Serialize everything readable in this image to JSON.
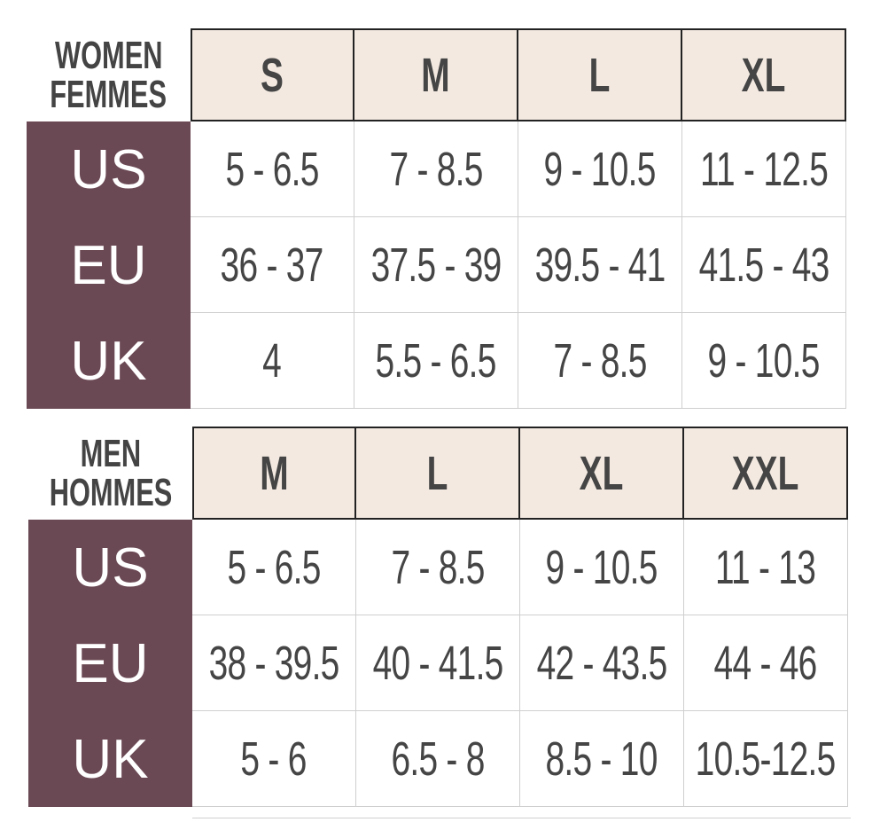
{
  "tables": [
    {
      "label": [
        "WOMEN",
        "FEMMES"
      ],
      "headers": [
        "S",
        "M",
        "L",
        "XL"
      ],
      "rows": [
        {
          "label": "US",
          "cells": [
            "5 - 6.5",
            "7 - 8.5",
            "9 - 10.5",
            "11 - 12.5"
          ]
        },
        {
          "label": "EU",
          "cells": [
            "36 - 37",
            "37.5 - 39",
            "39.5 - 41",
            "41.5 - 43"
          ]
        },
        {
          "label": "UK",
          "cells": [
            "4",
            "5.5 - 6.5",
            "7 - 8.5",
            "9 - 10.5"
          ]
        }
      ]
    },
    {
      "label": [
        "MEN",
        "HOMMES"
      ],
      "headers": [
        "M",
        "L",
        "XL",
        "XXL"
      ],
      "rows": [
        {
          "label": "US",
          "cells": [
            "5 - 6.5",
            "7 - 8.5",
            "9 - 10.5",
            "11 - 13"
          ]
        },
        {
          "label": "EU",
          "cells": [
            "38 - 39.5",
            "40 - 41.5",
            "42 - 43.5",
            "44 - 46"
          ]
        },
        {
          "label": "UK",
          "cells": [
            "5 - 6",
            "6.5 - 8",
            "8.5 - 10",
            "10.5-12.5"
          ]
        }
      ]
    }
  ]
}
